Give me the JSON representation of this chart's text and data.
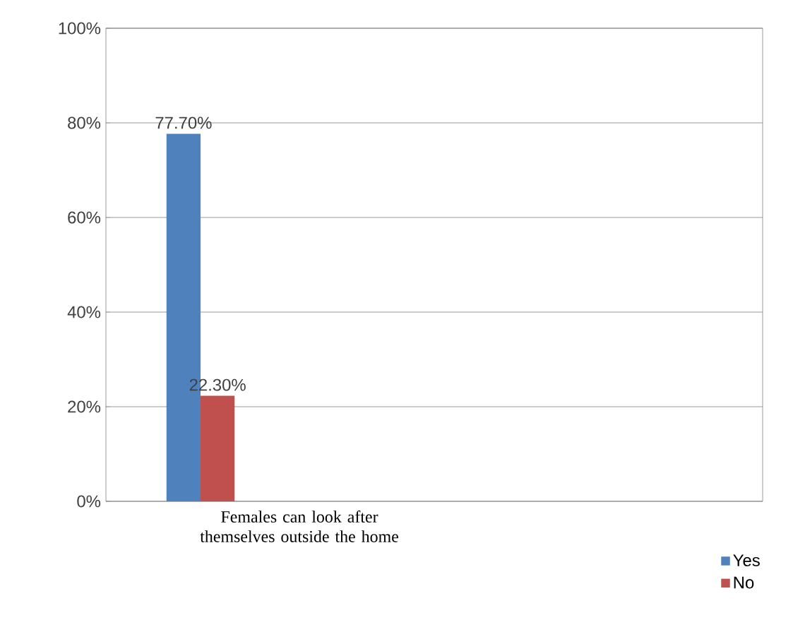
{
  "chart_data": {
    "type": "bar",
    "categories": [
      "Females can look after themselves outside the home"
    ],
    "series": [
      {
        "name": "Yes",
        "color": "#4f81bd",
        "values": [
          77.7
        ],
        "value_labels": [
          "77.70%"
        ]
      },
      {
        "name": "No",
        "color": "#c0504d",
        "values": [
          22.3
        ],
        "value_labels": [
          "22.30%"
        ]
      }
    ],
    "ylim": [
      0,
      100
    ],
    "yticks": [
      {
        "value": 0,
        "label": "0%"
      },
      {
        "value": 20,
        "label": "20%"
      },
      {
        "value": 40,
        "label": "40%"
      },
      {
        "value": 60,
        "label": "60%"
      },
      {
        "value": 80,
        "label": "80%"
      },
      {
        "value": 100,
        "label": "100%"
      }
    ],
    "grid": "y",
    "legend": "bottom right"
  }
}
